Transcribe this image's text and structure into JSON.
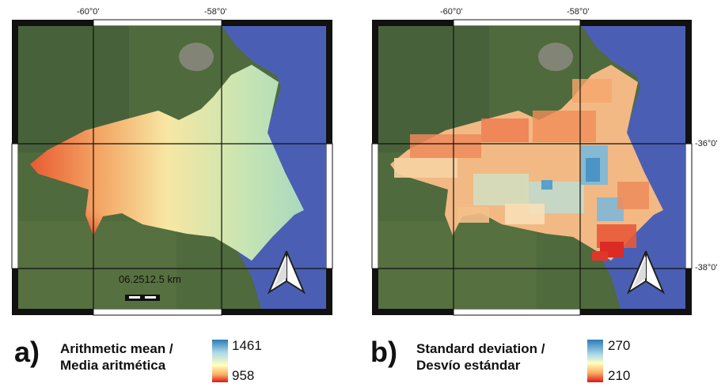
{
  "colors": {
    "water": "#4a5fb4",
    "land_dark": "#3f5a34",
    "land_light": "#5d7447",
    "ramp_high": "#2c7bb6",
    "ramp_mid": "#ffffbf",
    "ramp_low": "#d7191c"
  },
  "panel_a": {
    "letter": "a)",
    "coords": {
      "top_left_lon": "-60°0'",
      "top_right_lon": "-58°0'"
    },
    "scale_bar_label": "06.2512.5 km",
    "legend": {
      "title_line1": "Arithmetic mean /",
      "title_line2": "Media aritmética",
      "max_value": "1461",
      "min_value": "958"
    },
    "north_arrow_icon": "north-arrow-icon"
  },
  "panel_b": {
    "letter": "b)",
    "coords": {
      "top_left_lon": "-60°0'",
      "top_right_lon": "-58°0'",
      "right_lat_upper": "-36°0'",
      "right_lat_lower": "-38°0'"
    },
    "legend": {
      "title_line1": "Standard deviation /",
      "title_line2": "Desvío estándar",
      "max_value": "270",
      "min_value": "210"
    },
    "north_arrow_icon": "north-arrow-icon"
  }
}
